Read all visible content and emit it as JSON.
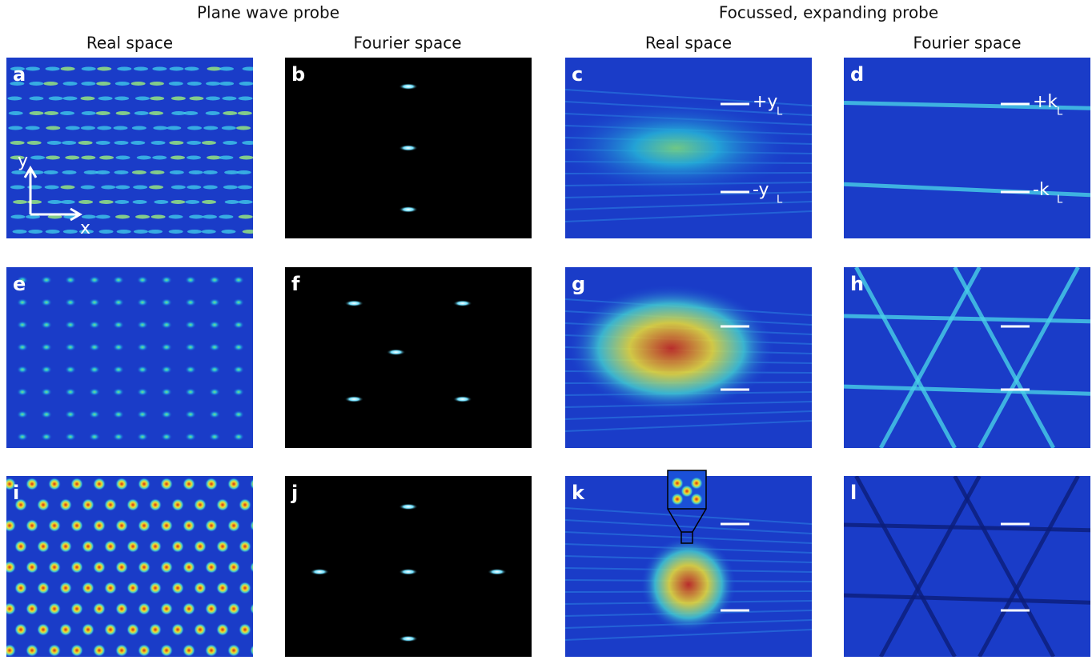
{
  "headers": {
    "groups": [
      "Plane wave probe",
      "Focussed, expanding probe"
    ],
    "columns": [
      "Real space",
      "Fourier space",
      "Real space",
      "Fourier space"
    ]
  },
  "panels": [
    "a",
    "b",
    "c",
    "d",
    "e",
    "f",
    "g",
    "h",
    "i",
    "j",
    "k",
    "l"
  ],
  "axes": {
    "y": "y",
    "x": "x"
  },
  "annotations": [
    {
      "text": "+y",
      "subscript": "L"
    },
    {
      "text": "-y",
      "subscript": "L"
    },
    {
      "text": "+k",
      "subscript": "L"
    },
    {
      "text": "-k",
      "subscript": "L"
    }
  ]
}
